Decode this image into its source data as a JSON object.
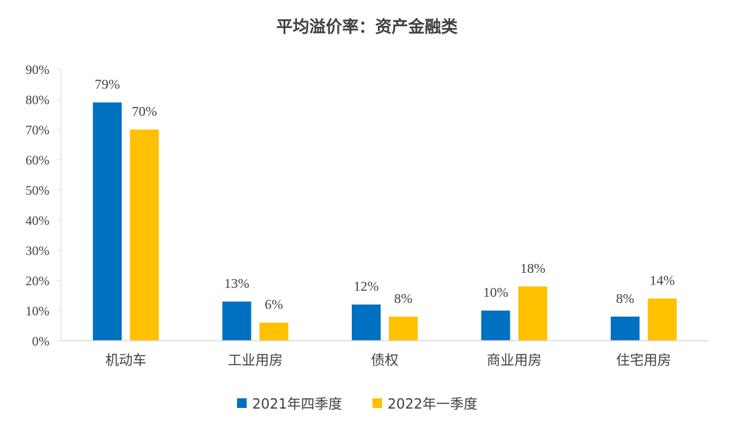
{
  "chart_data": {
    "type": "bar",
    "title": "平均溢价率：资产金融类",
    "categories": [
      "机动车",
      "工业用房",
      "债权",
      "商业用房",
      "住宅用房"
    ],
    "series": [
      {
        "name": "2021年四季度",
        "color": "#0070C0",
        "values": [
          79,
          13,
          12,
          10,
          8
        ],
        "labels": [
          "79%",
          "13%",
          "12%",
          "10%",
          "8%"
        ]
      },
      {
        "name": "2022年一季度",
        "color": "#FFC000",
        "values": [
          70,
          6,
          8,
          18,
          14
        ],
        "labels": [
          "70%",
          "6%",
          "8%",
          "18%",
          "14%"
        ]
      }
    ],
    "yticks": [
      "0%",
      "10%",
      "20%",
      "30%",
      "40%",
      "50%",
      "60%",
      "70%",
      "80%",
      "90%"
    ],
    "ylim": [
      0,
      90
    ],
    "legend_position": "bottom",
    "grid": false
  }
}
